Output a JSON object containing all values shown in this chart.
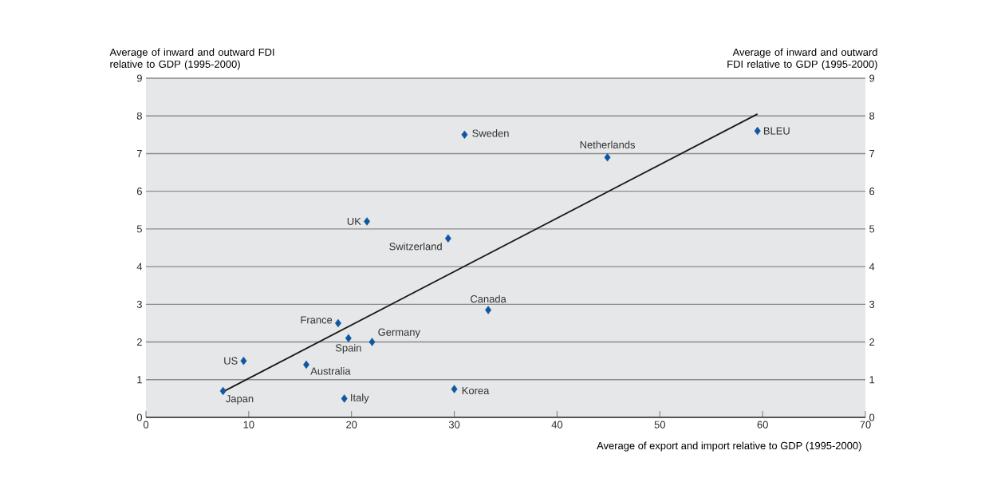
{
  "chart_data": {
    "type": "scatter",
    "xlabel": "Average of export and import relative to GDP (1995-2000)",
    "ylabel": "Average of inward and outward FDI relative to GDP (1995-2000)",
    "y2label": "Average of inward and outward FDI relative to GDP (1995-2000)",
    "series": [
      {
        "color": "#0f56a3",
        "marker": "diamond",
        "x": [
          7.5,
          9.5,
          15.6,
          18.7,
          19.7,
          19.3,
          22.0,
          21.5,
          29.4,
          31.0,
          30.0,
          33.3,
          44.9,
          59.5
        ],
        "values": [
          0.7,
          1.5,
          1.4,
          2.5,
          2.1,
          0.5,
          2.0,
          5.2,
          4.75,
          7.5,
          0.75,
          2.85,
          6.9,
          7.6
        ]
      },
      {
        "type": "line",
        "color": "#1a1a1a",
        "marker": "none",
        "x": [
          7.5,
          59.5
        ],
        "values": [
          0.68,
          8.05
        ]
      }
    ],
    "annotations": [
      {
        "text": "Japan",
        "x": 7.5,
        "y": 0.7
      },
      {
        "text": "US",
        "x": 9.5,
        "y": 1.5
      },
      {
        "text": "Australia",
        "x": 15.6,
        "y": 1.4
      },
      {
        "text": "France",
        "x": 18.7,
        "y": 2.5
      },
      {
        "text": "Spain",
        "x": 19.7,
        "y": 2.1
      },
      {
        "text": "Italy",
        "x": 19.3,
        "y": 0.5
      },
      {
        "text": "Germany",
        "x": 22.0,
        "y": 2.0
      },
      {
        "text": "UK",
        "x": 21.5,
        "y": 5.2
      },
      {
        "text": "Switzerland",
        "x": 29.4,
        "y": 4.75
      },
      {
        "text": "Sweden",
        "x": 31.0,
        "y": 7.5
      },
      {
        "text": "Korea",
        "x": 30.0,
        "y": 0.75
      },
      {
        "text": "Canada",
        "x": 33.3,
        "y": 2.85
      },
      {
        "text": "Netherlands",
        "x": 44.9,
        "y": 6.9
      },
      {
        "text": "BLEU",
        "x": 59.5,
        "y": 7.6
      }
    ],
    "xlim": [
      0,
      70
    ],
    "xticks": [
      0,
      10,
      20,
      30,
      40,
      50,
      60,
      70
    ],
    "ylim": [
      0,
      9
    ],
    "yticks": [
      0,
      1,
      2,
      3,
      4,
      5,
      6,
      7,
      8,
      9
    ],
    "y2lim": [
      0,
      9
    ],
    "y2ticks": [
      0,
      1,
      2,
      3,
      4,
      5,
      6,
      7,
      8,
      9
    ],
    "grid": "y"
  }
}
